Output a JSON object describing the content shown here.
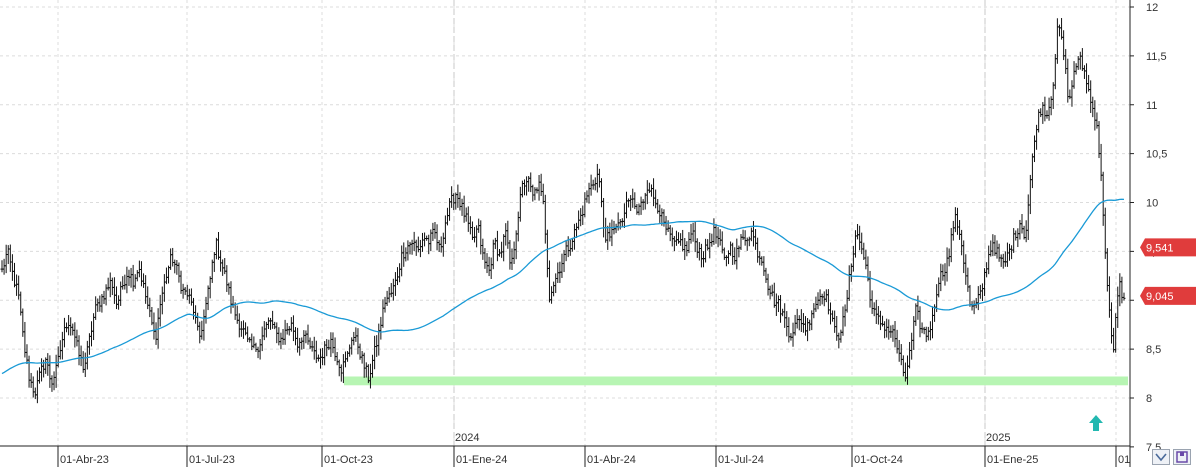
{
  "chart_data": {
    "type": "ohlc",
    "y_ticks": [
      "12",
      "11,5",
      "11",
      "10,5",
      "10",
      "9,5",
      "9",
      "8,5",
      "8",
      "7,5"
    ],
    "ylim": [
      7.5,
      12
    ],
    "x_ticks": [
      "01-Abr-23",
      "01-Jul-23",
      "01-Oct-23",
      "01-Ene-24",
      "01-Abr-24",
      "01-Jul-24",
      "01-Oct-24",
      "01-Ene-25",
      "01"
    ],
    "year_labels": [
      "2024",
      "2025"
    ],
    "price_tags": [
      {
        "label": "9,541",
        "value": 9.541,
        "color": "#e03c3c"
      },
      {
        "label": "9,045",
        "value": 9.045,
        "color": "#e03c3c"
      }
    ],
    "support_band": {
      "low": 8.13,
      "high": 8.22,
      "color": "#b7f5b3",
      "from": "01-Oct-23",
      "to": "01"
    },
    "moving_average_color": "#1a9ad6",
    "bar_color": "#111111",
    "price_path": [
      [
        9.3,
        9.5,
        9.25,
        9.05,
        8.55,
        8.2,
        8.05,
        8.25,
        8.4,
        8.15,
        8.3,
        8.6,
        8.8,
        8.7,
        8.45,
        8.3
      ],
      [
        8.6,
        8.9,
        9.0,
        9.1,
        9.2,
        8.95,
        9.15,
        9.3,
        9.2,
        9.35,
        9.1,
        8.85,
        8.6,
        9.0,
        9.25,
        9.45
      ],
      [
        9.3,
        9.1,
        9.05,
        8.9,
        8.6,
        8.85,
        9.2,
        9.6,
        9.4,
        9.2,
        8.95,
        8.8,
        8.7,
        8.55,
        8.5,
        8.55
      ],
      [
        8.7,
        8.8,
        8.65,
        8.6,
        8.7,
        8.75,
        8.55,
        8.65,
        8.55,
        8.45,
        8.4,
        8.5,
        8.6,
        8.45,
        8.3,
        8.4
      ],
      [
        8.65,
        8.55,
        8.35,
        8.2,
        8.45,
        8.7,
        9.0,
        9.05,
        9.2,
        9.45,
        9.55,
        9.6,
        9.5,
        9.65,
        9.6,
        9.7
      ],
      [
        9.5,
        9.8,
        10.0,
        10.1,
        9.95,
        9.8,
        9.6,
        9.75,
        9.4,
        9.3,
        9.6,
        9.45,
        9.7,
        9.3,
        9.75,
        10.15
      ],
      [
        10.25,
        10.05,
        10.2,
        9.95,
        9.05,
        9.2,
        9.35,
        9.5,
        9.6,
        9.75,
        9.9,
        10.1,
        10.2,
        10.3,
        9.7,
        9.6
      ],
      [
        9.8,
        9.75,
        9.95,
        10.05,
        9.9,
        10.0,
        10.2,
        10.05,
        9.95,
        9.75,
        9.65,
        9.55,
        9.6,
        9.5,
        9.7,
        9.55
      ],
      [
        9.45,
        9.55,
        9.7,
        9.6,
        9.4,
        9.55,
        9.45,
        9.6,
        9.65,
        9.7,
        9.5,
        9.4,
        9.15,
        9.0,
        8.95,
        8.8
      ],
      [
        8.65,
        8.75,
        8.8,
        8.7,
        8.9,
        9.0,
        9.1,
        8.95,
        8.7,
        8.65,
        8.85,
        9.3,
        9.7,
        9.55,
        9.3,
        8.9
      ],
      [
        8.8,
        8.75,
        8.7,
        8.65,
        8.4,
        8.2,
        8.5,
        8.9,
        8.7,
        8.65,
        8.8,
        9.2,
        9.3,
        9.45,
        9.85,
        9.7
      ],
      [
        9.3,
        8.9,
        8.95,
        9.1,
        9.4,
        9.6,
        9.45,
        9.35,
        9.5,
        9.65,
        9.8,
        9.65,
        10.3,
        10.8,
        11.0,
        10.9
      ],
      [
        11.2,
        11.85,
        11.5,
        11.0,
        11.4,
        11.45,
        11.3,
        11.0,
        10.85,
        10.1,
        9.1,
        8.4,
        9.2,
        9.0
      ]
    ]
  }
}
